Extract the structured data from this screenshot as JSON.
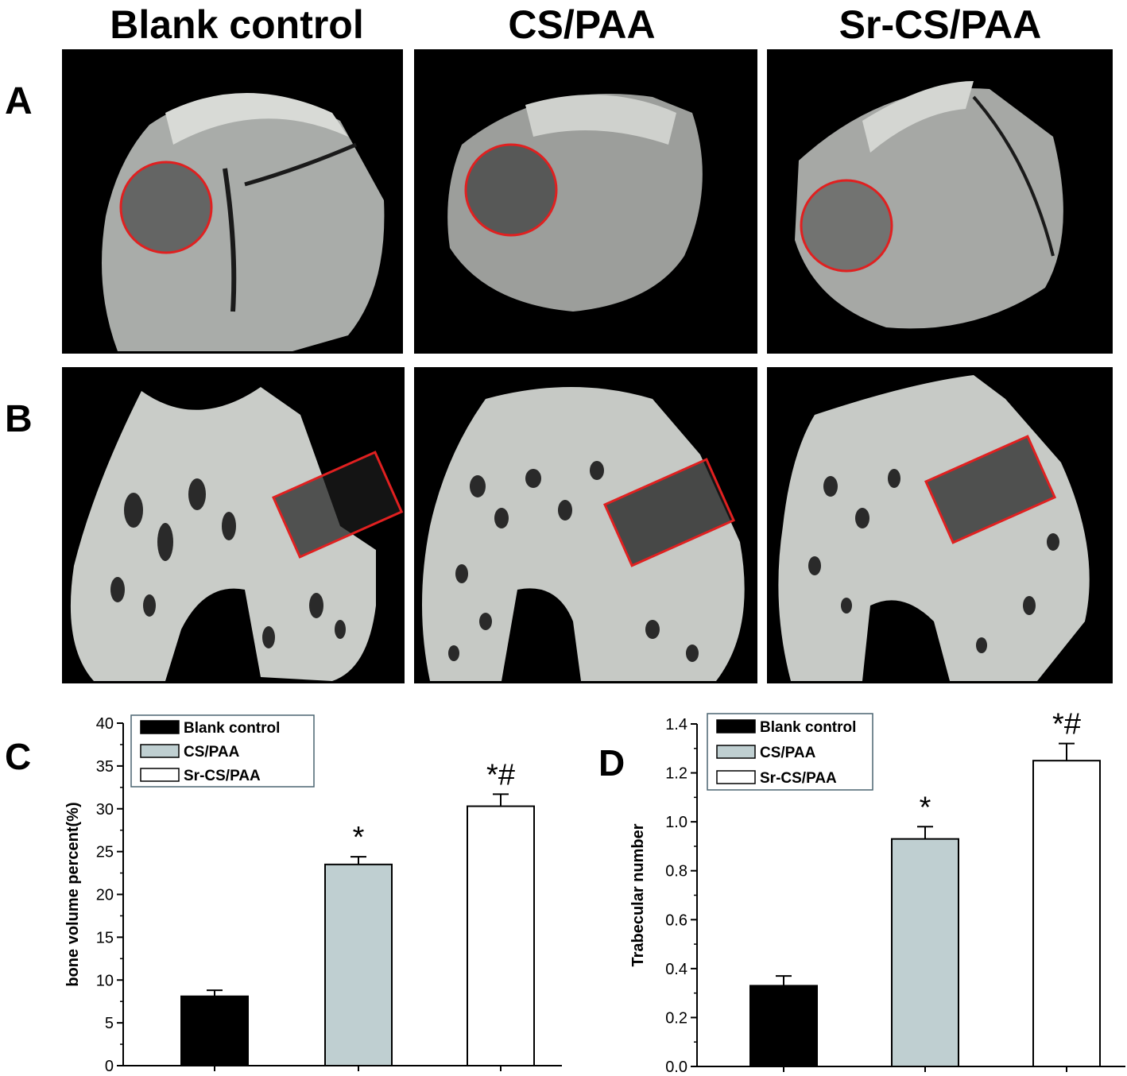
{
  "columns": [
    "Blank control",
    "CS/PAA",
    "Sr-CS/PAA"
  ],
  "row_labels": {
    "a": "A",
    "b": "B"
  },
  "colors": {
    "blank": "#000000",
    "cs": "#bfcfd1",
    "sr": "#ffffff",
    "roi": "#e02020",
    "legend_border": "#4a6470",
    "bone": "#c9ccc8"
  },
  "chart_data": [
    {
      "panel": "C",
      "type": "bar",
      "categories": [
        "Blank control",
        "CS/PAA",
        "Sr-CS/PAA"
      ],
      "values": [
        8.1,
        23.5,
        30.3
      ],
      "errors": [
        0.7,
        0.9,
        1.4
      ],
      "annotations": [
        "",
        "*",
        "*#"
      ],
      "ylabel": "bone volume percent(%)",
      "xlabel": "",
      "ylim": [
        0,
        40
      ],
      "yticks": [
        0,
        5,
        10,
        15,
        20,
        25,
        30,
        35,
        40
      ],
      "ytick_labels": [
        "0",
        "5",
        "10",
        "15",
        "20",
        "25",
        "30",
        "35",
        "40"
      ],
      "legend": [
        "Blank control",
        "CS/PAA",
        "Sr-CS/PAA"
      ]
    },
    {
      "panel": "D",
      "type": "bar",
      "categories": [
        "Blank control",
        "CS/PAA",
        "Sr-CS/PAA"
      ],
      "values": [
        0.33,
        0.93,
        1.25
      ],
      "errors": [
        0.04,
        0.05,
        0.07
      ],
      "annotations": [
        "",
        "*",
        "*#"
      ],
      "ylabel": "Trabecular number",
      "xlabel": "",
      "ylim": [
        0,
        1.4
      ],
      "yticks": [
        0,
        0.2,
        0.4,
        0.6,
        0.8,
        1.0,
        1.2,
        1.4
      ],
      "ytick_labels": [
        "0.0",
        "0.2",
        "0.4",
        "0.6",
        "0.8",
        "1.0",
        "1.2",
        "1.4"
      ],
      "legend": [
        "Blank control",
        "CS/PAA",
        "Sr-CS/PAA"
      ]
    }
  ]
}
